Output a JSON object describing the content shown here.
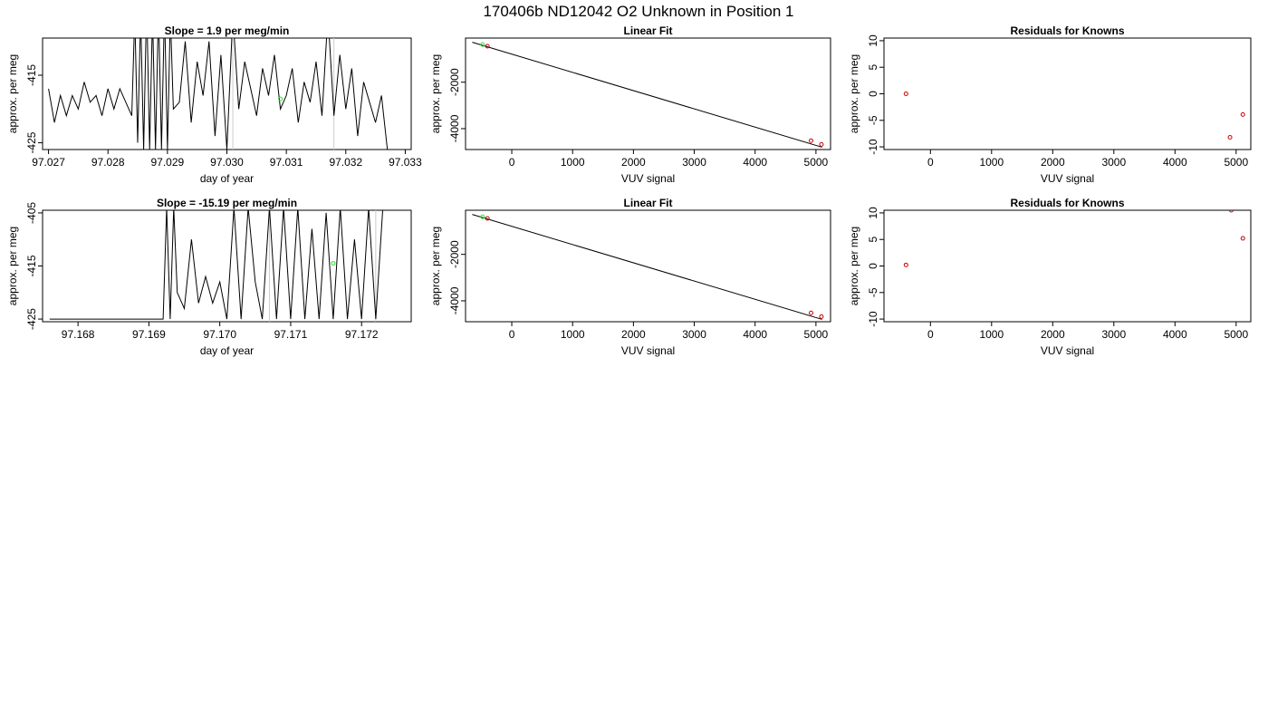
{
  "page": {
    "title": "170406b     ND12042   O2 Unknown in Position  1"
  },
  "colors": {
    "line": "#000000",
    "marker_known": "#cc0000",
    "marker_unknown": "#33dd33",
    "spike": "#cccccc"
  },
  "chart_data": [
    {
      "type": "line",
      "title": "Slope =  1.9  per meg/min",
      "xlabel": "day of year",
      "ylabel": "approx. per meg",
      "xlim": [
        97.0269,
        97.0331
      ],
      "ylim": [
        -426.0,
        -409.5
      ],
      "x_ticks": [
        97.027,
        97.028,
        97.029,
        97.03,
        97.031,
        97.032,
        97.033
      ],
      "x_tick_labels": [
        "97.027",
        "97.028",
        "97.029",
        "97.030",
        "97.031",
        "97.032",
        "97.033"
      ],
      "y_ticks": [
        -425,
        -415
      ],
      "y_tick_labels": [
        "-425",
        "-415"
      ],
      "x": [
        97.027,
        97.0271,
        97.0272,
        97.0273,
        97.0274,
        97.0275,
        97.0276,
        97.0277,
        97.0278,
        97.0279,
        97.028,
        97.0281,
        97.0282,
        97.0283,
        97.0284,
        97.02845,
        97.0285,
        97.02855,
        97.0286,
        97.02865,
        97.0287,
        97.02875,
        97.0288,
        97.02885,
        97.0289,
        97.02895,
        97.029,
        97.02905,
        97.0291,
        97.0292,
        97.0293,
        97.0294,
        97.0295,
        97.0296,
        97.0297,
        97.0298,
        97.0299,
        97.03,
        97.0301,
        97.0302,
        97.0303,
        97.0304,
        97.0305,
        97.0306,
        97.0307,
        97.0308,
        97.0309,
        97.031,
        97.0311,
        97.0312,
        97.0313,
        97.0314,
        97.0315,
        97.0316,
        97.0317,
        97.0318,
        97.0319,
        97.032,
        97.0321,
        97.0322,
        97.0323,
        97.0324,
        97.0325,
        97.0326,
        97.0327
      ],
      "values": [
        -417,
        -422,
        -418,
        -421,
        -418,
        -420,
        -416,
        -419,
        -418,
        -421,
        -417,
        -420,
        -417,
        -419,
        -421,
        -406,
        -425,
        -406,
        -426,
        -404,
        -426,
        -406,
        -426,
        -405,
        -426,
        -405,
        -426,
        -406,
        -420,
        -419,
        -410,
        -422,
        -413,
        -418,
        -410,
        -424,
        -412,
        -426,
        -406,
        -420,
        -413,
        -417,
        -421,
        -414,
        -418,
        -412,
        -420,
        -418,
        -414,
        -422,
        -416,
        -419,
        -413,
        -421,
        -406,
        -421,
        -412,
        -420,
        -414,
        -424,
        -416,
        -419,
        -422,
        -418,
        -426
      ],
      "spikes_x": [
        97.0301,
        97.0318
      ],
      "markers": [
        {
          "x": 97.0309,
          "y": -418.5,
          "kind": "unknown"
        }
      ]
    },
    {
      "type": "scatter",
      "title": "Linear Fit",
      "xlabel": "VUV signal",
      "ylabel": "approx. per meg",
      "xlim": [
        -760,
        5240
      ],
      "ylim": [
        -4900,
        -100
      ],
      "x_ticks": [
        0,
        1000,
        2000,
        3000,
        4000,
        5000
      ],
      "x_tick_labels": [
        "0",
        "1000",
        "2000",
        "3000",
        "4000",
        "5000"
      ],
      "y_ticks": [
        -4000,
        -2000
      ],
      "y_tick_labels": [
        "-4000",
        "-2000"
      ],
      "fit_line": {
        "x": [
          -650,
          5100
        ],
        "y": [
          -280,
          -4800
        ]
      },
      "points": [
        {
          "x": -480,
          "y": -380,
          "kind": "unknown"
        },
        {
          "x": -400,
          "y": -450,
          "kind": "known"
        },
        {
          "x": 4920,
          "y": -4520,
          "kind": "known"
        },
        {
          "x": 5090,
          "y": -4680,
          "kind": "known"
        }
      ]
    },
    {
      "type": "scatter",
      "title": "Residuals for Knowns",
      "xlabel": "VUV signal",
      "ylabel": "approx. per meg",
      "xlim": [
        -760,
        5240
      ],
      "ylim": [
        -10.5,
        10.5
      ],
      "x_ticks": [
        0,
        1000,
        2000,
        3000,
        4000,
        5000
      ],
      "x_tick_labels": [
        "0",
        "1000",
        "2000",
        "3000",
        "4000",
        "5000"
      ],
      "y_ticks": [
        -10,
        -5,
        0,
        5,
        10
      ],
      "y_tick_labels": [
        "-10",
        "-5",
        "0",
        "5",
        "10"
      ],
      "points": [
        {
          "x": -400,
          "y": 0.0,
          "kind": "known"
        },
        {
          "x": 4900,
          "y": -8.2,
          "kind": "known"
        },
        {
          "x": 5110,
          "y": -3.9,
          "kind": "known"
        }
      ]
    },
    {
      "type": "line",
      "title": "Slope =  -15.19  per meg/min",
      "xlabel": "day of year",
      "ylabel": "approx. per meg",
      "xlim": [
        97.1675,
        97.1727
      ],
      "ylim": [
        -425.5,
        -404.5
      ],
      "x_ticks": [
        97.168,
        97.169,
        97.17,
        97.171,
        97.172
      ],
      "x_tick_labels": [
        "97.168",
        "97.169",
        "97.170",
        "97.171",
        "97.172"
      ],
      "y_ticks": [
        -425,
        -415,
        -405
      ],
      "y_tick_labels": [
        "-425",
        "-415",
        "-405"
      ],
      "x": [
        97.1676,
        97.1692,
        97.16925,
        97.1693,
        97.16935,
        97.1694,
        97.1695,
        97.1696,
        97.1697,
        97.1698,
        97.1699,
        97.17,
        97.1701,
        97.1702,
        97.1703,
        97.1704,
        97.1705,
        97.1706,
        97.1707,
        97.1708,
        97.1709,
        97.171,
        97.1711,
        97.1712,
        97.1713,
        97.1714,
        97.1715,
        97.1716,
        97.1717,
        97.1718,
        97.1719,
        97.172,
        97.1721,
        97.1722,
        97.1723
      ],
      "values": [
        -425,
        -425,
        -404,
        -425,
        -404,
        -420,
        -423,
        -410,
        -422,
        -417,
        -422,
        -418,
        -425,
        -404,
        -425,
        -404,
        -418,
        -425,
        -404,
        -425,
        -404,
        -425,
        -404,
        -425,
        -408,
        -425,
        -405,
        -425,
        -404,
        -425,
        -410,
        -425,
        -404,
        -425,
        -404
      ],
      "spikes_x": [
        97.1707,
        97.1722
      ],
      "markers": [
        {
          "x": 97.1716,
          "y": -414.5,
          "kind": "unknown"
        }
      ]
    },
    {
      "type": "scatter",
      "title": "Linear Fit",
      "xlabel": "VUV signal",
      "ylabel": "approx. per meg",
      "xlim": [
        -760,
        5240
      ],
      "ylim": [
        -4900,
        -100
      ],
      "x_ticks": [
        0,
        1000,
        2000,
        3000,
        4000,
        5000
      ],
      "x_tick_labels": [
        "0",
        "1000",
        "2000",
        "3000",
        "4000",
        "5000"
      ],
      "y_ticks": [
        -4000,
        -2000
      ],
      "y_tick_labels": [
        "-4000",
        "-2000"
      ],
      "fit_line": {
        "x": [
          -650,
          5100
        ],
        "y": [
          -280,
          -4800
        ]
      },
      "points": [
        {
          "x": -480,
          "y": -380,
          "kind": "unknown"
        },
        {
          "x": -400,
          "y": -450,
          "kind": "known"
        },
        {
          "x": 4920,
          "y": -4520,
          "kind": "known"
        },
        {
          "x": 5090,
          "y": -4680,
          "kind": "known"
        }
      ]
    },
    {
      "type": "scatter",
      "title": "Residuals for Knowns",
      "xlabel": "VUV signal",
      "ylabel": "approx. per meg",
      "xlim": [
        -760,
        5240
      ],
      "ylim": [
        -10.5,
        10.5
      ],
      "x_ticks": [
        0,
        1000,
        2000,
        3000,
        4000,
        5000
      ],
      "x_tick_labels": [
        "0",
        "1000",
        "2000",
        "3000",
        "4000",
        "5000"
      ],
      "y_ticks": [
        -10,
        -5,
        0,
        5,
        10
      ],
      "y_tick_labels": [
        "-10",
        "-5",
        "0",
        "5",
        "10"
      ],
      "points": [
        {
          "x": -400,
          "y": 0.2,
          "kind": "known"
        },
        {
          "x": 4920,
          "y": 10.5,
          "kind": "known"
        },
        {
          "x": 5110,
          "y": 5.2,
          "kind": "known"
        }
      ]
    }
  ]
}
